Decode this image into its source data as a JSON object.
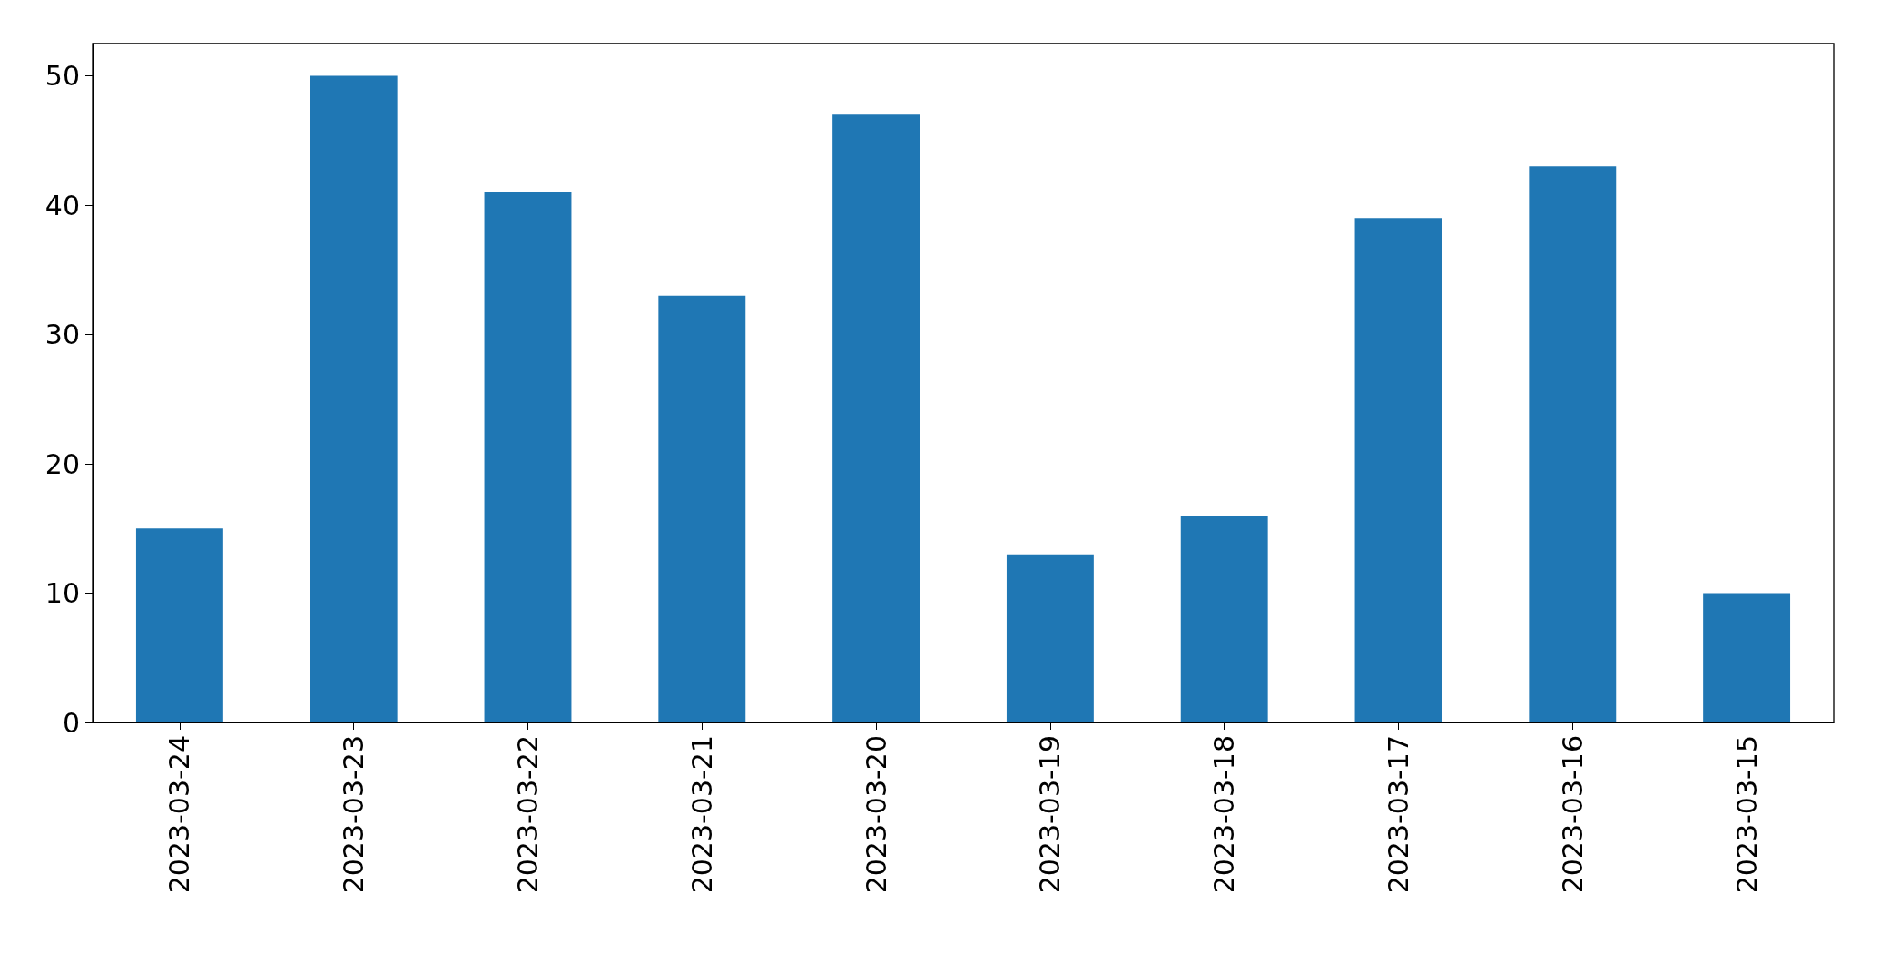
{
  "chart_data": {
    "type": "bar",
    "categories": [
      "2023-03-24",
      "2023-03-23",
      "2023-03-22",
      "2023-03-21",
      "2023-03-20",
      "2023-03-19",
      "2023-03-18",
      "2023-03-17",
      "2023-03-16",
      "2023-03-15"
    ],
    "values": [
      15,
      50,
      41,
      33,
      47,
      13,
      16,
      39,
      43,
      10
    ],
    "color": "#1f77b4",
    "ylim": [
      0,
      52.5
    ],
    "yticks": [
      0,
      10,
      20,
      30,
      40,
      50
    ]
  }
}
